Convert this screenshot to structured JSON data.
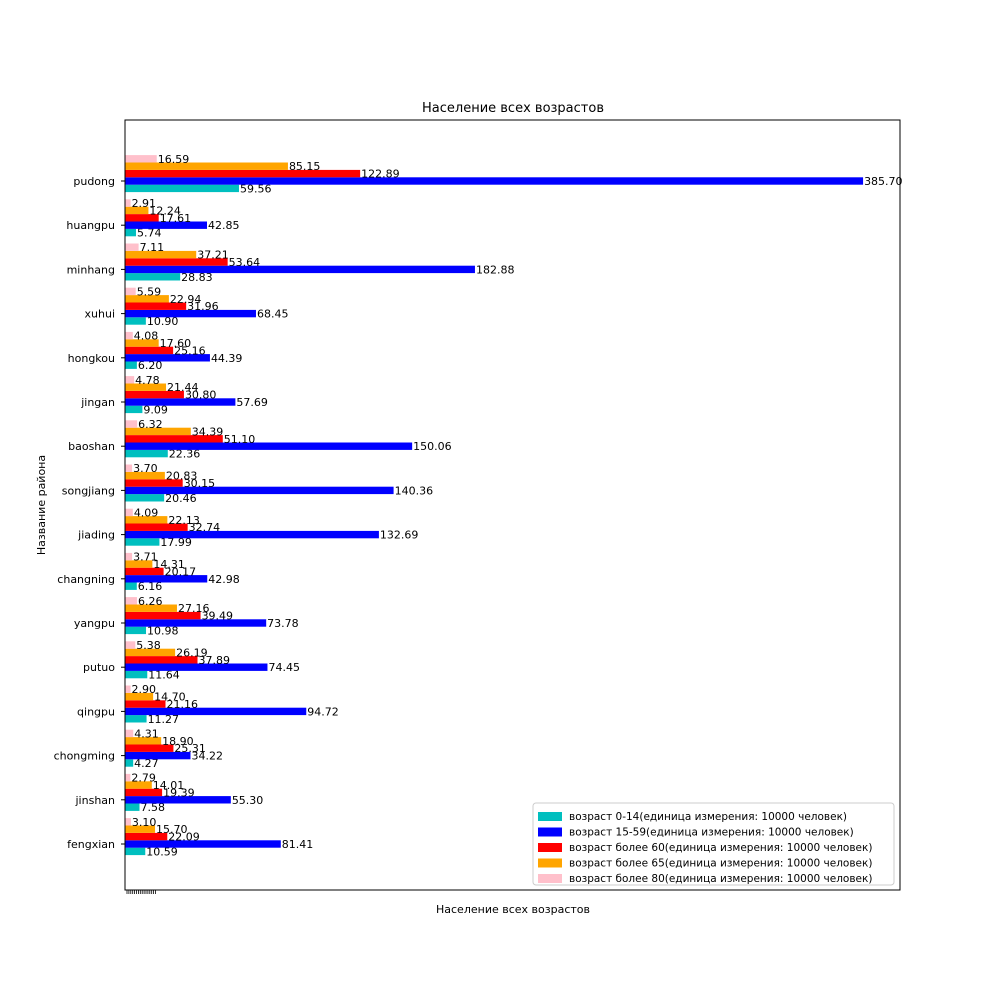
{
  "chart_data": {
    "type": "bar",
    "orientation": "horizontal",
    "title": "Население всех возрастов",
    "xlabel": "Население всех возрастов",
    "ylabel": "Название района",
    "categories": [
      "pudong",
      "huangpu",
      "minhang",
      "xuhui",
      "hongkou",
      "jingan",
      "baoshan",
      "songjiang",
      "jiading",
      "changning",
      "yangpu",
      "putuo",
      "qingpu",
      "chongming",
      "jinshan",
      "fengxian"
    ],
    "xlim": [
      0,
      405
    ],
    "grid": false,
    "legend_position": "lower-right",
    "series": [
      {
        "name": "возраст 0-14(единица измерения: 10000 человек)",
        "color": "#00bfbf",
        "values": [
          59.56,
          5.74,
          28.83,
          10.9,
          6.2,
          9.09,
          22.36,
          20.46,
          17.99,
          6.16,
          10.98,
          11.64,
          11.27,
          4.27,
          7.58,
          10.59
        ]
      },
      {
        "name": "возраст 15-59(единица измерения: 10000 человек)",
        "color": "#0000ff",
        "values": [
          385.7,
          42.85,
          182.88,
          68.45,
          44.39,
          57.69,
          150.06,
          140.36,
          132.69,
          42.98,
          73.78,
          74.45,
          94.72,
          34.22,
          55.3,
          81.41
        ]
      },
      {
        "name": "возраст более 60(единица измерения: 10000 человек)",
        "color": "#ff0000",
        "values": [
          122.89,
          17.61,
          53.64,
          31.96,
          25.16,
          30.8,
          51.1,
          30.15,
          32.74,
          20.17,
          39.49,
          37.89,
          21.16,
          25.31,
          19.39,
          22.09
        ]
      },
      {
        "name": "возраст более 65(единица измерения: 10000 человек)",
        "color": "#ffa500",
        "values": [
          85.15,
          12.24,
          37.21,
          22.94,
          17.6,
          21.44,
          34.39,
          20.83,
          22.13,
          14.31,
          27.16,
          26.19,
          14.7,
          18.9,
          14.01,
          15.7
        ]
      },
      {
        "name": "возраст более 80(единица измерения: 10000 человек)",
        "color": "#ffc0cb",
        "values": [
          16.59,
          2.91,
          7.11,
          5.59,
          4.08,
          4.78,
          6.32,
          3.7,
          4.09,
          3.71,
          6.26,
          5.38,
          2.9,
          4.31,
          2.79,
          3.1
        ]
      }
    ]
  }
}
